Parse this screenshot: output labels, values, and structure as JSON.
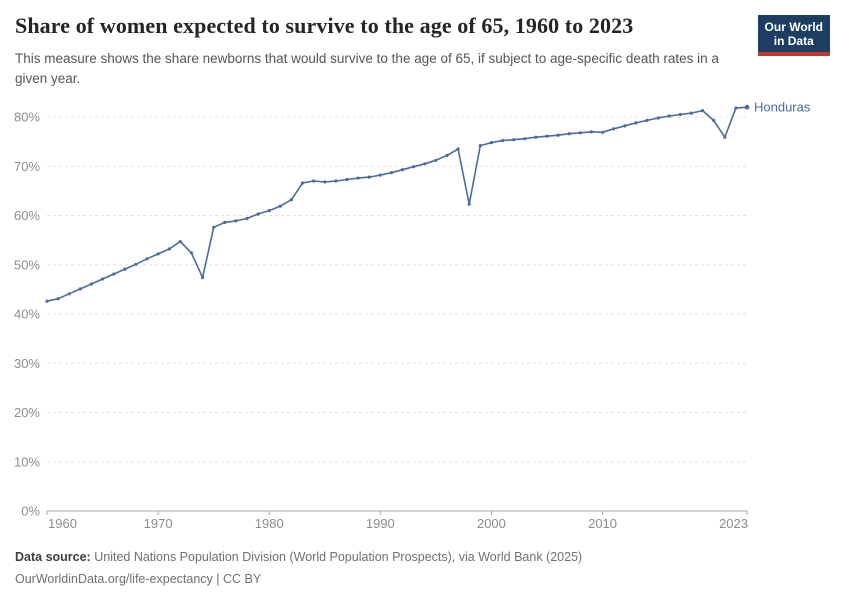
{
  "header": {
    "title": "Share of women expected to survive to the age of 65, 1960 to 2023",
    "subtitle": "This measure shows the share newborns that would survive to the age of 65, if subject to age-specific death rates in a given year.",
    "logo": {
      "line1": "Our World",
      "line2": "in Data"
    }
  },
  "chart_data": {
    "type": "line",
    "title": "Share of women expected to survive to the age of 65, 1960 to 2023",
    "entity": "Honduras",
    "unit": "%",
    "xlabel": "",
    "ylabel": "",
    "ylim": [
      0,
      80
    ],
    "yticks": [
      0,
      10,
      20,
      30,
      40,
      50,
      60,
      70,
      80
    ],
    "xticks": [
      1960,
      1970,
      1980,
      1990,
      2000,
      2010,
      2023
    ],
    "grid": "horizontal-dashed",
    "legend": "end-of-line-label",
    "x": [
      1960,
      1961,
      1962,
      1963,
      1964,
      1965,
      1966,
      1967,
      1968,
      1969,
      1970,
      1971,
      1972,
      1973,
      1974,
      1975,
      1976,
      1977,
      1978,
      1979,
      1980,
      1981,
      1982,
      1983,
      1984,
      1985,
      1986,
      1987,
      1988,
      1989,
      1990,
      1991,
      1992,
      1993,
      1994,
      1995,
      1996,
      1997,
      1998,
      1999,
      2000,
      2001,
      2002,
      2003,
      2004,
      2005,
      2006,
      2007,
      2008,
      2009,
      2010,
      2011,
      2012,
      2013,
      2014,
      2015,
      2016,
      2017,
      2018,
      2019,
      2020,
      2021,
      2022,
      2023
    ],
    "series": [
      {
        "name": "Honduras",
        "values": [
          42.6,
          43.1,
          44.1,
          45.1,
          46.1,
          47.1,
          48.1,
          49.1,
          50.1,
          51.2,
          52.2,
          53.2,
          54.7,
          52.4,
          47.4,
          57.6,
          58.6,
          58.9,
          59.4,
          60.3,
          61.0,
          61.9,
          63.2,
          66.6,
          67.0,
          66.8,
          67.0,
          67.3,
          67.6,
          67.8,
          68.2,
          68.7,
          69.3,
          69.9,
          70.5,
          71.2,
          72.2,
          73.5,
          62.3,
          74.2,
          74.8,
          75.2,
          75.4,
          75.6,
          75.9,
          76.1,
          76.3,
          76.6,
          76.8,
          77.0,
          76.9,
          77.6,
          78.2,
          78.8,
          79.3,
          79.8,
          80.2,
          80.5,
          80.8,
          81.3,
          79.3,
          75.9,
          81.8,
          82.0
        ]
      }
    ],
    "colors": {
      "line": "#4C6A9C",
      "grid": "#e2e2e2",
      "axis": "#a8a8a8",
      "tick_text": "#8c8c8c"
    }
  },
  "footer": {
    "source_label": "Data source:",
    "source_text": "United Nations Population Division (World Population Prospects), via World Bank (2025)",
    "url_text": "OurWorldinData.org/life-expectancy",
    "separator": "|",
    "license": "CC BY"
  }
}
